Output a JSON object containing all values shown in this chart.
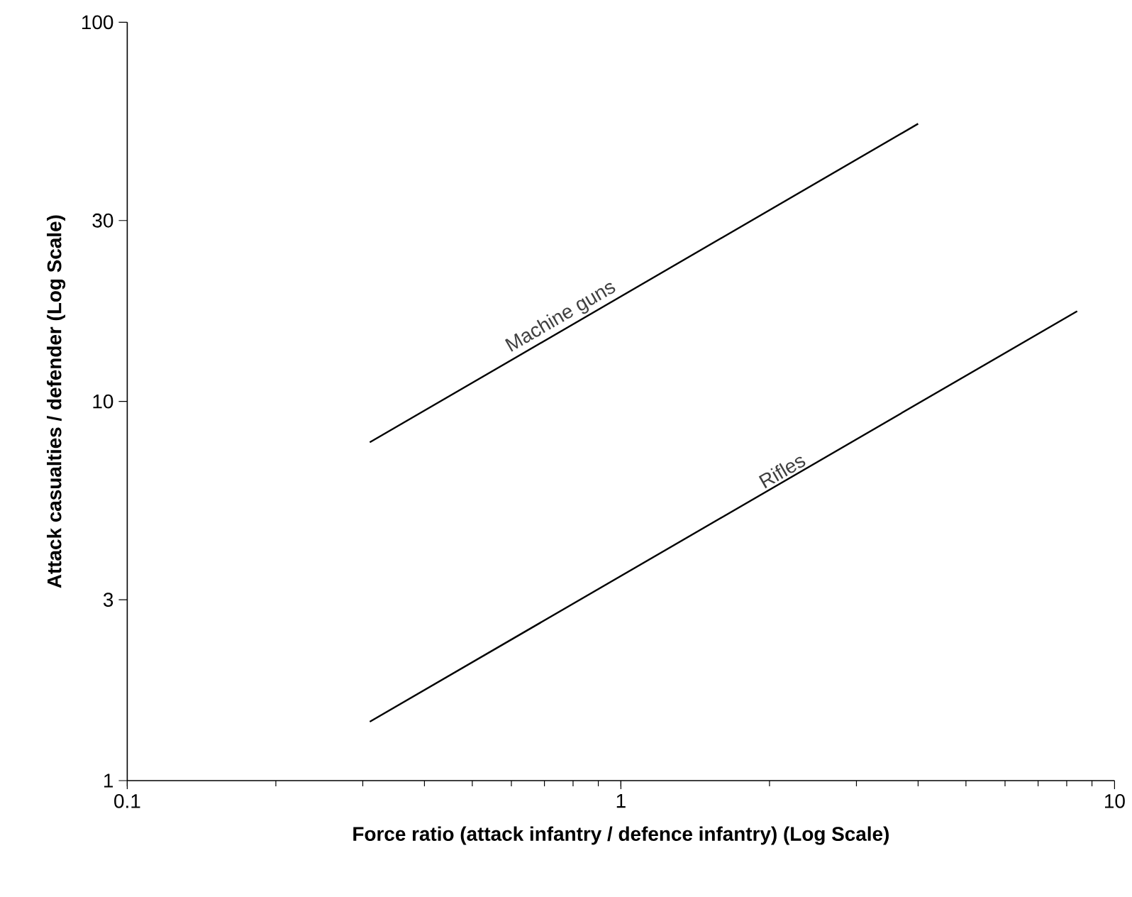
{
  "chart_data": {
    "type": "line",
    "xlabel": "Force ratio (attack infantry / defence infantry) (Log Scale)",
    "ylabel": "Attack casualties / defender (Log Scale)",
    "log": "xy",
    "xlim": [
      0.1,
      10
    ],
    "ylim": [
      1,
      100
    ],
    "xticks": [
      0.1,
      1,
      10
    ],
    "yticks": [
      1,
      3,
      10,
      30,
      100
    ],
    "series": [
      {
        "name": "Machine guns",
        "color": "#000000",
        "x": [
          0.31,
          4.0
        ],
        "values": [
          7.8,
          54
        ]
      },
      {
        "name": "Rifles",
        "color": "#000000",
        "x": [
          0.31,
          8.4
        ],
        "values": [
          1.43,
          17.3
        ]
      }
    ],
    "marker": "none",
    "line_style": "solid",
    "grid": false,
    "legend": false
  }
}
